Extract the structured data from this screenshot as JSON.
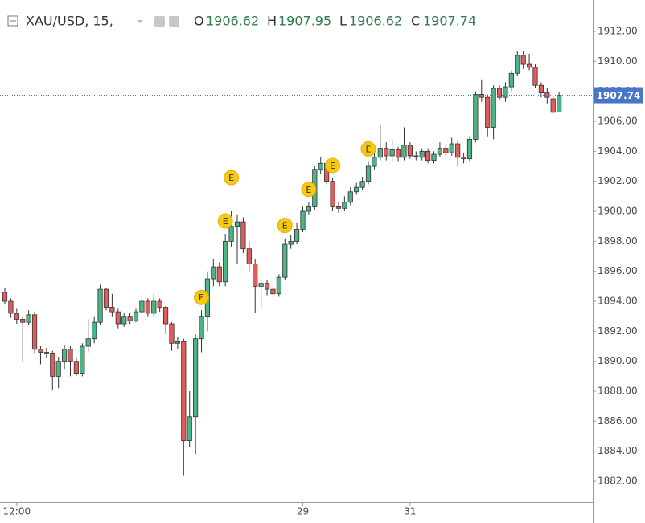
{
  "header": {
    "symbol": "XAU/USD, 15,",
    "open_label": "O",
    "high_label": "H",
    "low_label": "L",
    "close_label": "C"
  },
  "chart_data": {
    "type": "candlestick",
    "categories": [
      null,
      null,
      "12:00",
      null,
      null,
      null,
      null,
      null,
      null,
      null,
      null,
      null,
      null,
      null,
      null,
      null,
      null,
      null,
      null,
      null,
      null,
      null,
      null,
      null,
      null,
      null,
      null,
      null,
      null,
      null,
      null,
      null,
      null,
      null,
      null,
      null,
      null,
      null,
      null,
      null,
      null,
      null,
      null,
      null,
      null,
      null,
      null,
      null,
      null,
      null,
      "29",
      null,
      null,
      null,
      null,
      null,
      null,
      null,
      null,
      null,
      null,
      null,
      null,
      null,
      null,
      null,
      null,
      null,
      "31",
      null,
      null,
      null,
      null,
      null,
      null,
      null,
      null,
      null,
      null,
      null,
      null,
      null,
      null,
      null,
      null,
      null,
      null,
      null,
      null,
      null,
      null,
      null,
      null,
      null
    ],
    "open": [
      1894.6,
      1894.0,
      1893.2,
      1892.8,
      1892.6,
      1893.1,
      1890.8,
      1890.6,
      1890.5,
      1889.0,
      1890.0,
      1890.8,
      1890.0,
      1889.2,
      1891.0,
      1891.5,
      1892.6,
      1894.8,
      1893.6,
      1893.3,
      1892.5,
      1893.0,
      1892.7,
      1893.3,
      1894.0,
      1893.2,
      1894.0,
      1893.6,
      1892.5,
      1891.2,
      1891.3,
      1884.7,
      1886.3,
      1891.5,
      1893.0,
      1895.5,
      1896.3,
      1895.3,
      1898.0,
      1899.0,
      1899.3,
      1897.5,
      1896.5,
      1895.0,
      1895.2,
      1894.8,
      1894.5,
      1895.6,
      1897.8,
      1898.0,
      1898.8,
      1900.0,
      1900.3,
      1902.8,
      1903.2,
      1902.0,
      1900.3,
      1900.2,
      1900.6,
      1901.3,
      1901.6,
      1902.0,
      1903.0,
      1903.6,
      1904.2,
      1903.7,
      1904.1,
      1903.6,
      1904.4,
      1903.7,
      1903.6,
      1904.0,
      1903.4,
      1903.8,
      1904.2,
      1903.9,
      1904.5,
      1903.6,
      1903.5,
      1904.8,
      1907.8,
      1907.6,
      1905.6,
      1908.2,
      1907.6,
      1908.3,
      1909.2,
      1910.4,
      1909.8,
      1909.6,
      1908.4,
      1907.9,
      1907.5,
      1906.62
    ],
    "high": [
      1894.9,
      1894.2,
      1893.5,
      1893.0,
      1893.4,
      1893.3,
      1891.0,
      1890.9,
      1890.7,
      1890.3,
      1891.1,
      1891.0,
      1890.2,
      1891.2,
      1892.8,
      1893.0,
      1895.1,
      1894.9,
      1894.5,
      1893.5,
      1893.2,
      1893.2,
      1893.5,
      1894.4,
      1894.2,
      1894.5,
      1894.2,
      1893.7,
      1892.6,
      1891.6,
      1891.5,
      1888.0,
      1891.8,
      1893.4,
      1896.0,
      1896.8,
      1896.6,
      1898.5,
      1900.0,
      1899.8,
      1899.6,
      1898.0,
      1896.8,
      1895.5,
      1895.4,
      1895.1,
      1895.8,
      1898.2,
      1898.4,
      1899.2,
      1900.3,
      1900.6,
      1903.0,
      1903.6,
      1903.4,
      1902.2,
      1900.6,
      1901.0,
      1901.6,
      1901.9,
      1902.3,
      1903.3,
      1904.2,
      1905.8,
      1904.6,
      1904.8,
      1904.3,
      1905.6,
      1904.6,
      1904.0,
      1904.2,
      1904.2,
      1904.0,
      1904.6,
      1904.4,
      1904.9,
      1904.7,
      1903.9,
      1905.0,
      1908.0,
      1908.8,
      1907.8,
      1908.4,
      1908.4,
      1908.6,
      1909.4,
      1910.7,
      1910.7,
      1910.5,
      1909.8,
      1908.6,
      1908.2,
      1907.7,
      1907.95
    ],
    "low": [
      1893.8,
      1892.9,
      1892.5,
      1890.0,
      1892.4,
      1890.5,
      1889.8,
      1890.2,
      1888.1,
      1888.2,
      1889.5,
      1889.0,
      1889.0,
      1889.0,
      1890.6,
      1891.2,
      1892.4,
      1893.4,
      1893.0,
      1892.2,
      1892.3,
      1892.5,
      1892.6,
      1893.1,
      1893.0,
      1893.0,
      1893.3,
      1891.8,
      1890.7,
      1890.8,
      1882.4,
      1884.3,
      1883.8,
      1890.6,
      1892.0,
      1895.0,
      1895.0,
      1895.0,
      1897.6,
      1896.5,
      1897.2,
      1896.0,
      1893.2,
      1893.5,
      1894.4,
      1894.3,
      1894.3,
      1895.4,
      1897.5,
      1897.8,
      1898.6,
      1899.8,
      1900.1,
      1902.5,
      1901.8,
      1900.0,
      1899.9,
      1900.0,
      1900.4,
      1901.1,
      1901.4,
      1901.8,
      1902.8,
      1903.4,
      1903.4,
      1903.3,
      1903.3,
      1903.4,
      1903.5,
      1903.4,
      1903.4,
      1903.2,
      1903.2,
      1903.6,
      1903.7,
      1903.7,
      1903.0,
      1903.2,
      1903.3,
      1904.6,
      1907.3,
      1905.0,
      1904.8,
      1907.4,
      1907.3,
      1908.0,
      1909.0,
      1909.5,
      1909.4,
      1908.2,
      1907.6,
      1907.2,
      1906.5,
      1906.62
    ],
    "close": [
      1894.0,
      1893.2,
      1892.8,
      1892.6,
      1893.1,
      1890.8,
      1890.6,
      1890.5,
      1889.0,
      1890.0,
      1890.8,
      1890.0,
      1889.2,
      1891.0,
      1891.5,
      1892.6,
      1894.8,
      1893.6,
      1893.3,
      1892.5,
      1893.0,
      1892.7,
      1893.3,
      1894.0,
      1893.2,
      1894.0,
      1893.6,
      1892.5,
      1891.2,
      1891.3,
      1884.7,
      1886.3,
      1891.5,
      1893.0,
      1895.5,
      1896.3,
      1895.3,
      1898.0,
      1899.0,
      1899.3,
      1897.5,
      1896.5,
      1895.0,
      1895.2,
      1894.8,
      1894.5,
      1895.6,
      1897.8,
      1898.0,
      1898.8,
      1900.0,
      1900.3,
      1902.8,
      1903.2,
      1902.0,
      1900.3,
      1900.2,
      1900.6,
      1901.3,
      1901.6,
      1902.0,
      1903.0,
      1903.6,
      1904.2,
      1903.7,
      1904.1,
      1903.6,
      1904.4,
      1903.7,
      1903.7,
      1904.0,
      1903.4,
      1903.8,
      1904.2,
      1903.9,
      1904.5,
      1903.6,
      1903.5,
      1904.8,
      1907.8,
      1907.6,
      1905.6,
      1908.2,
      1907.6,
      1908.3,
      1909.2,
      1910.4,
      1909.8,
      1909.6,
      1908.4,
      1907.9,
      1907.6,
      1906.6,
      1907.74
    ],
    "up_color": "#4cb486",
    "down_color": "#e25c5c",
    "last_price_color": "#4a76c9",
    "ylim": [
      1880.61,
      1914.09
    ],
    "yticks": [
      {
        "value": 1882,
        "label": "1882.00"
      },
      {
        "value": 1884,
        "label": "1884.00"
      },
      {
        "value": 1886,
        "label": "1886.00"
      },
      {
        "value": 1888,
        "label": "1888.00"
      },
      {
        "value": 1890,
        "label": "1890.00"
      },
      {
        "value": 1892,
        "label": "1892.00"
      },
      {
        "value": 1894,
        "label": "1894.00"
      },
      {
        "value": 1896,
        "label": "1896.00"
      },
      {
        "value": 1898,
        "label": "1898.00"
      },
      {
        "value": 1900,
        "label": "1900.00"
      },
      {
        "value": 1902,
        "label": "1902.00"
      },
      {
        "value": 1904,
        "label": "1904.00"
      },
      {
        "value": 1906,
        "label": "1906.00"
      },
      {
        "value": 1908,
        "label": "1908.00"
      },
      {
        "value": 1910,
        "label": "1910.00"
      },
      {
        "value": 1912,
        "label": "1912.00"
      }
    ],
    "markers": [
      {
        "index": 33,
        "label": "E"
      },
      {
        "index": 37,
        "label": "E"
      },
      {
        "index": 38,
        "label": "E"
      },
      {
        "index": 47,
        "label": "E"
      },
      {
        "index": 51,
        "label": "E"
      },
      {
        "index": 55,
        "label": "E"
      },
      {
        "index": 61,
        "label": "E"
      }
    ]
  }
}
